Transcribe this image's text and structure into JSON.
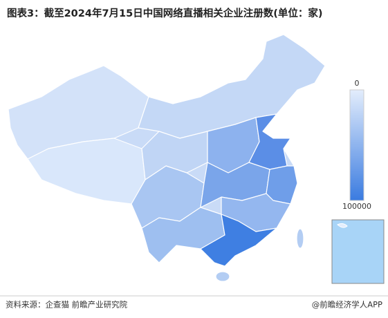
{
  "header": {
    "title": "图表3：截至2024年7月15日中国网络直播相关企业注册数(单位：家)"
  },
  "legend": {
    "min": 0,
    "max": 100000
  },
  "footer": {
    "source": "资料来源：企查猫 前瞻产业研究院",
    "brand": "@前瞻经济学人APP"
  }
}
